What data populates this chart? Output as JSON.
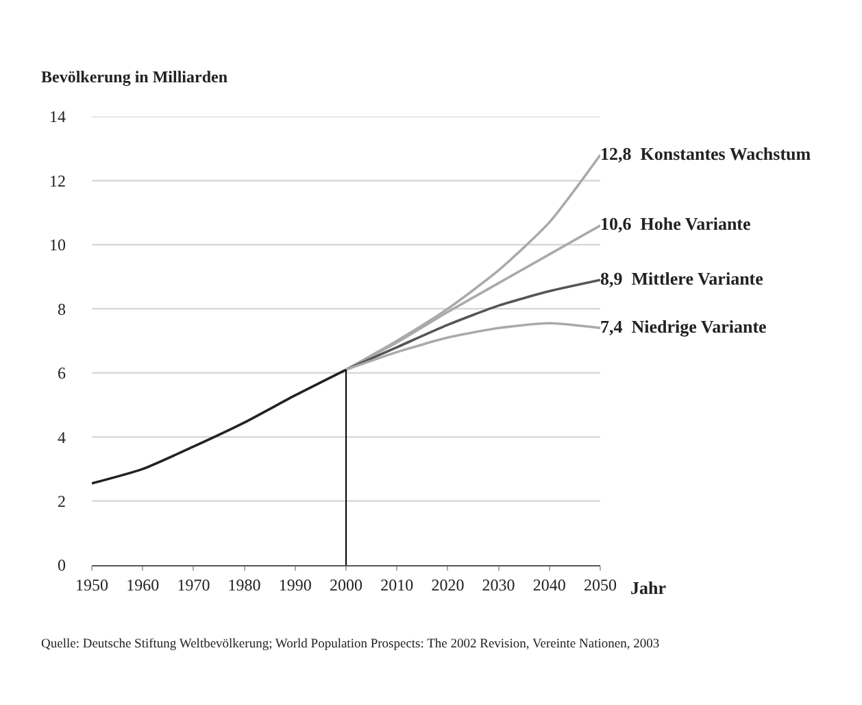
{
  "chart_data": {
    "type": "line",
    "ylabel": "Bevölkerung in Milliarden",
    "xlabel": "Jahr",
    "xlim": [
      1950,
      2050
    ],
    "xticks": [
      1950,
      1960,
      1970,
      1980,
      1990,
      2000,
      2010,
      2020,
      2030,
      2040,
      2050
    ],
    "ylim": [
      0,
      14
    ],
    "yticks": [
      0,
      2,
      4,
      6,
      8,
      10,
      12,
      14
    ],
    "grid": "y",
    "legend": false,
    "marker": "none",
    "line_style": "solid",
    "series": [
      {
        "color": "#222222",
        "x": [
          1950,
          1960,
          1970,
          1980,
          1990,
          2000
        ],
        "values": [
          2.55,
          3.0,
          3.7,
          4.45,
          5.3,
          6.1
        ]
      },
      {
        "name": "Konstantes Wachstum",
        "color": "#aaaaaa",
        "x": [
          2000,
          2010,
          2020,
          2030,
          2040,
          2050
        ],
        "values": [
          6.1,
          7.0,
          8.0,
          9.2,
          10.7,
          12.8
        ],
        "value_labels": [
          null,
          null,
          null,
          null,
          null,
          "12,8"
        ]
      },
      {
        "name": "Hohe Variante",
        "color": "#aaaaaa",
        "x": [
          2000,
          2010,
          2020,
          2030,
          2040,
          2050
        ],
        "values": [
          6.1,
          6.95,
          7.9,
          8.8,
          9.7,
          10.6
        ],
        "value_labels": [
          null,
          null,
          null,
          null,
          null,
          "10,6"
        ]
      },
      {
        "name": "Mittlere Variante",
        "color": "#555555",
        "x": [
          2000,
          2010,
          2020,
          2030,
          2040,
          2050
        ],
        "values": [
          6.1,
          6.8,
          7.5,
          8.1,
          8.55,
          8.9
        ],
        "value_labels": [
          null,
          null,
          null,
          null,
          null,
          "8,9"
        ]
      },
      {
        "name": "Niedrige Variante",
        "color": "#aaaaaa",
        "x": [
          2000,
          2010,
          2020,
          2030,
          2040,
          2050
        ],
        "values": [
          6.1,
          6.65,
          7.1,
          7.4,
          7.55,
          7.4
        ],
        "value_labels": [
          null,
          null,
          null,
          null,
          null,
          "7,4"
        ]
      }
    ],
    "ref_lines": [
      {
        "axis": "x",
        "value": 2000,
        "color": "#000000",
        "line_style": "solid"
      }
    ],
    "annotations": [
      "Quelle: Deutsche Stiftung Weltbevölkerung; World Population Prospects: The 2002 Revision, Vereinte Nationen, 2003"
    ]
  }
}
